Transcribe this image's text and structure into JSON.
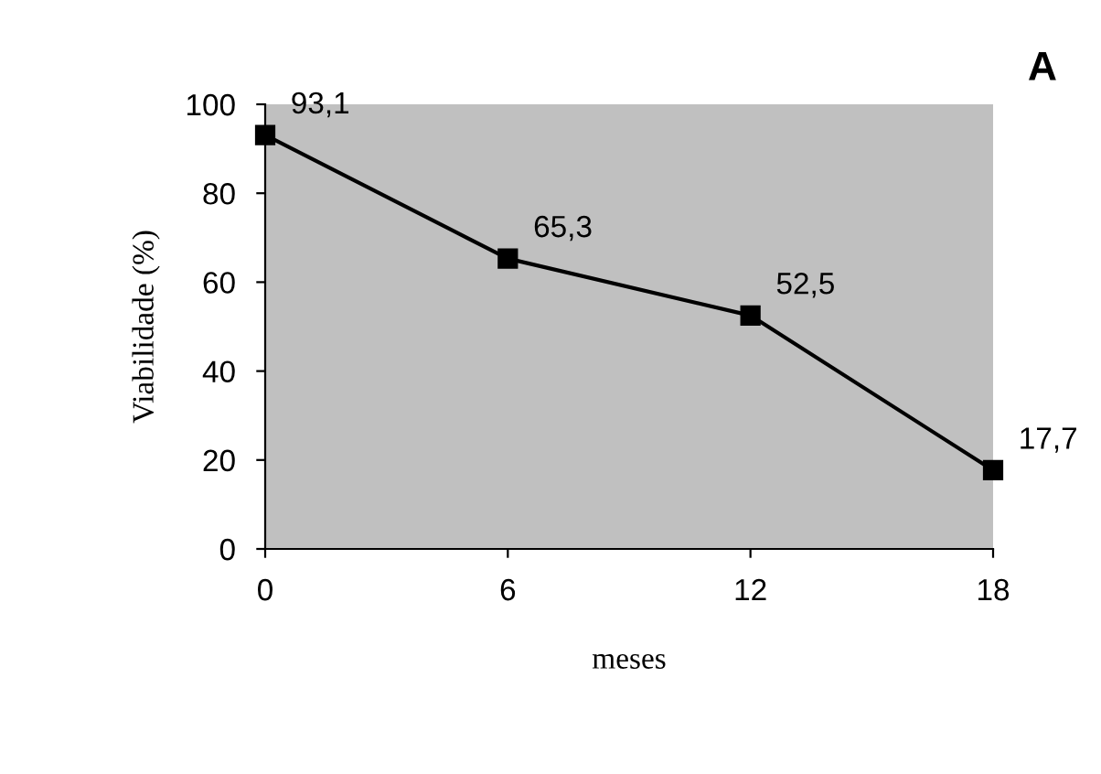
{
  "chart_data": {
    "type": "line",
    "xlabel": "meses",
    "ylabel": "Viabilidade (%)",
    "annotations": [
      "A"
    ],
    "x": [
      0,
      6,
      12,
      18
    ],
    "series": [
      {
        "color": "#000000",
        "values": [
          93.1,
          65.3,
          52.5,
          17.7
        ],
        "value_labels": [
          "93,1",
          "65,3",
          "52,5",
          "17,7"
        ]
      }
    ],
    "xlim": [
      0,
      18
    ],
    "xticks": [
      0,
      6,
      12,
      18
    ],
    "ylim": [
      0,
      100
    ],
    "yticks": [
      0,
      20,
      40,
      60,
      80,
      100
    ],
    "marker": "square",
    "line_style": "solid",
    "grid": false,
    "legend": false
  }
}
